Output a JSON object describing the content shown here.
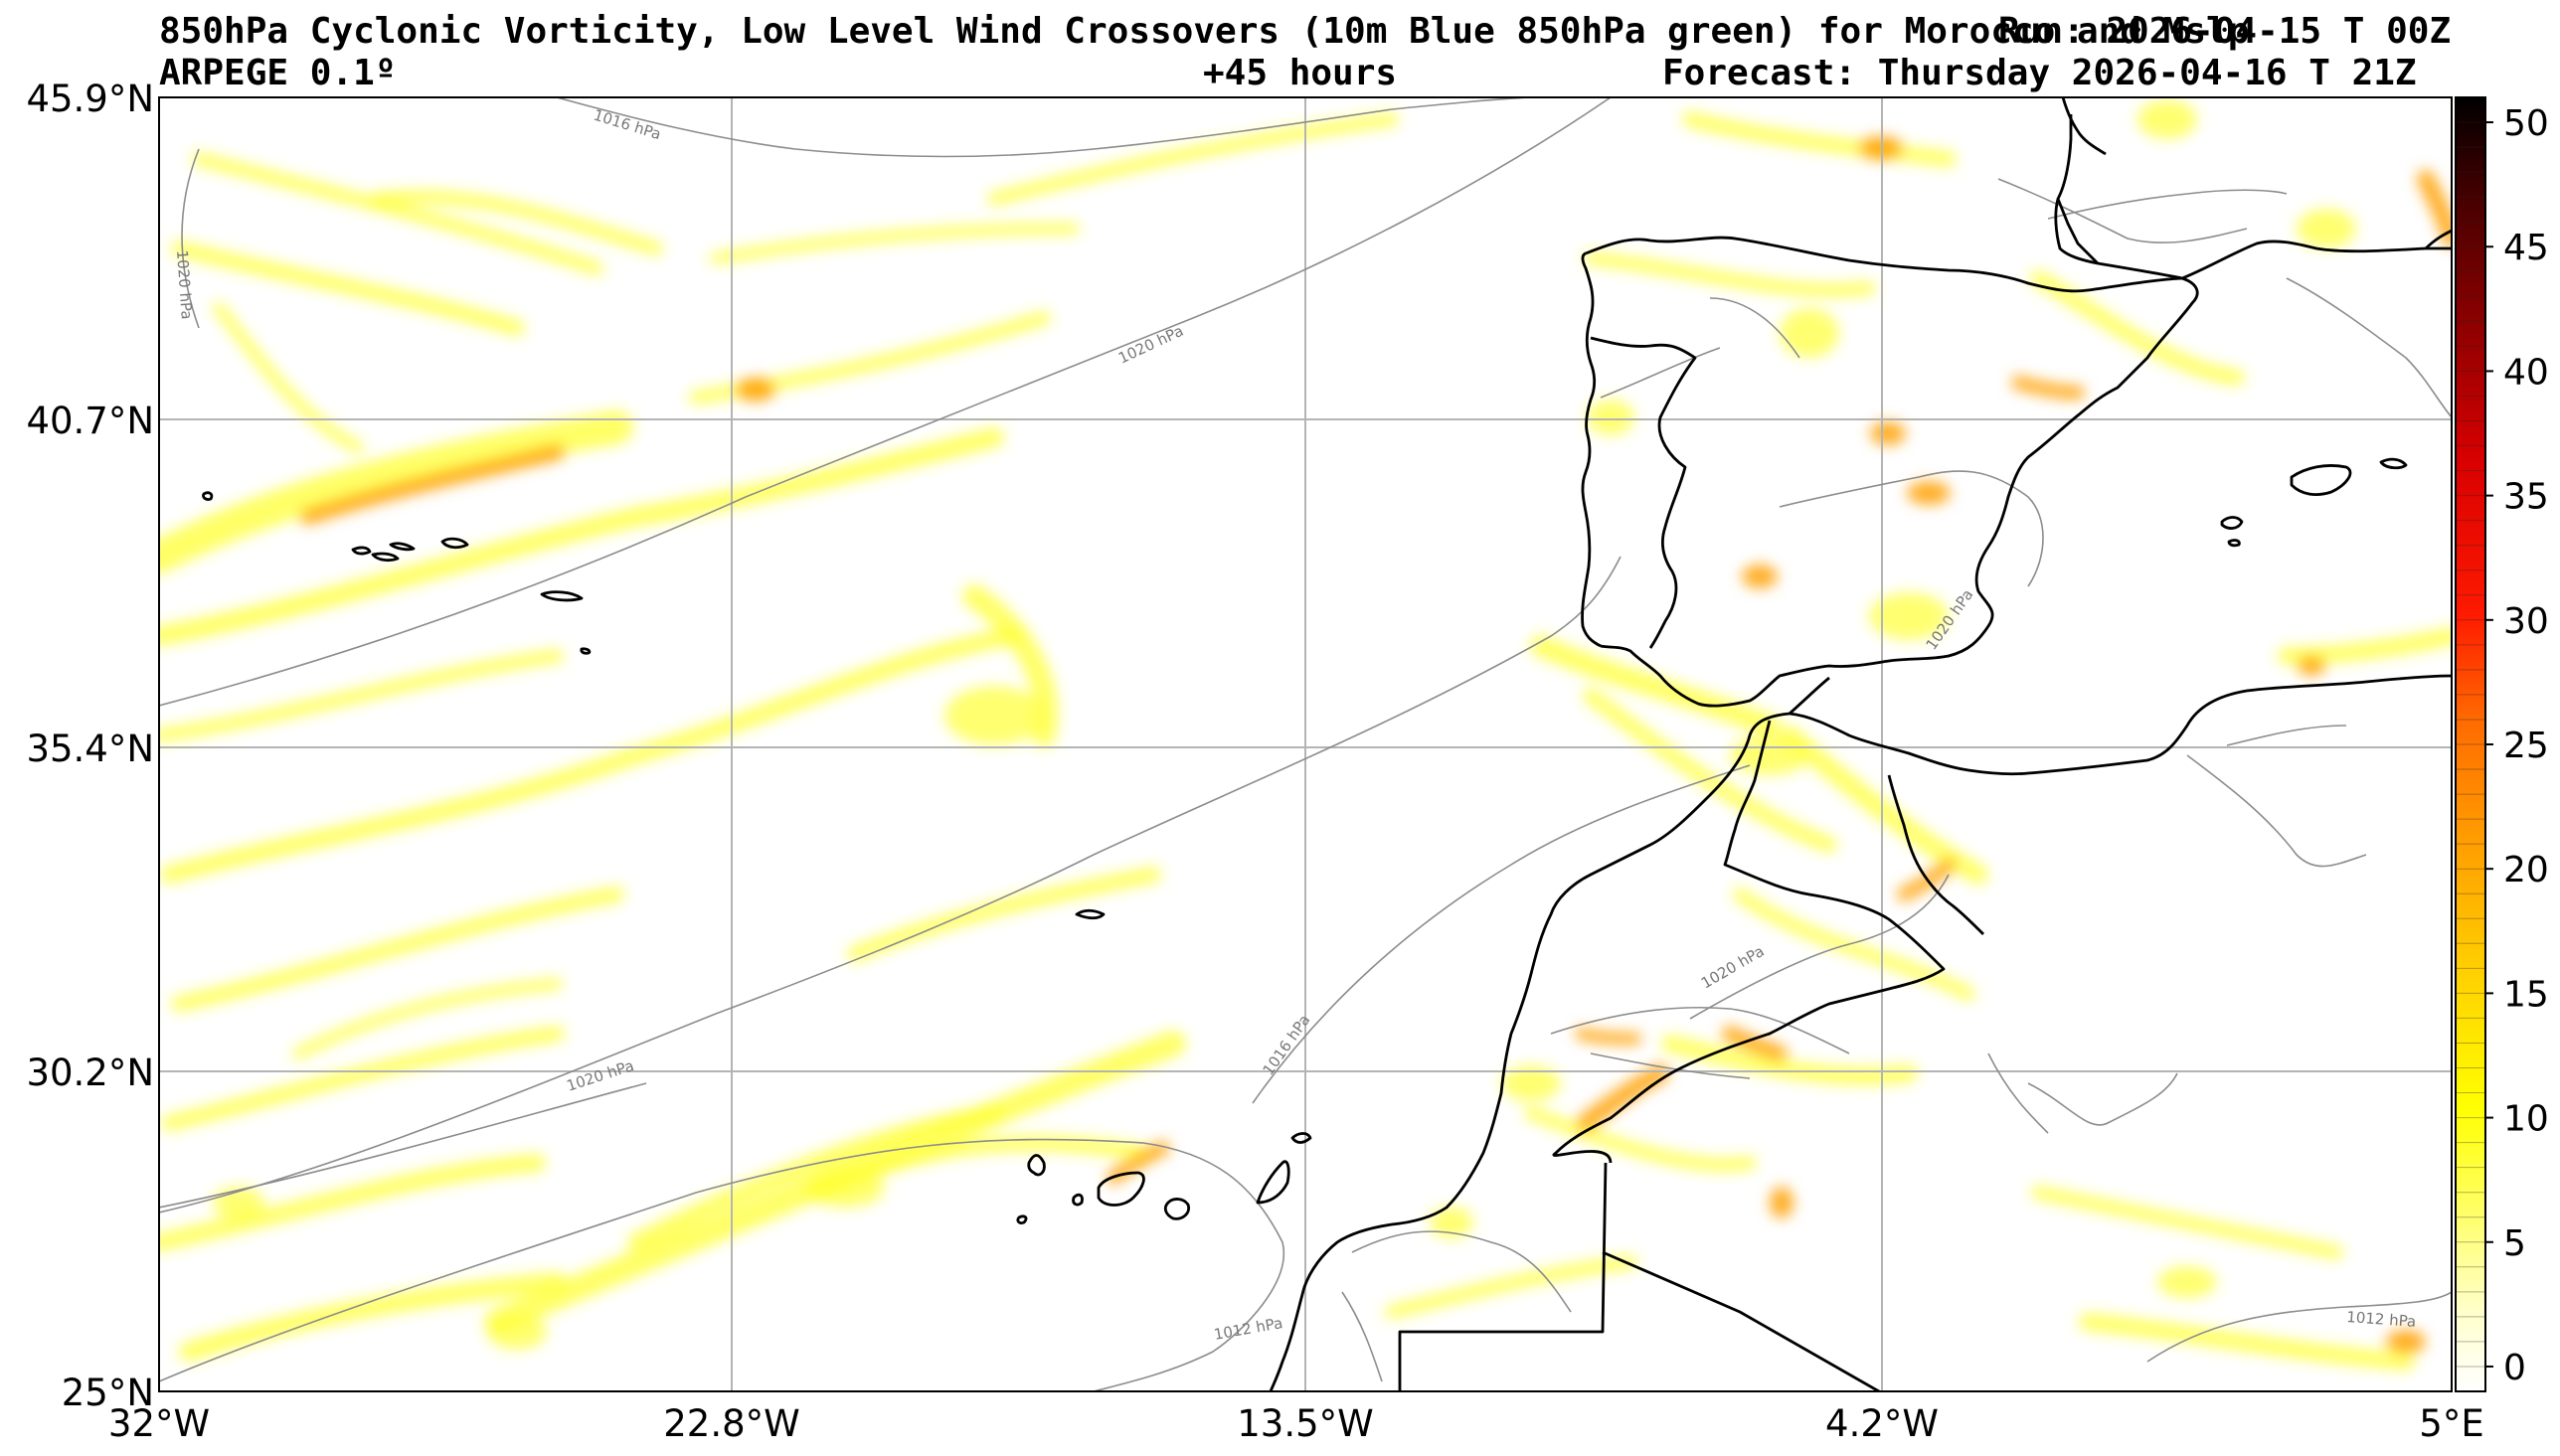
{
  "header": {
    "title": "850hPa Cyclonic Vorticity, Low Level Wind Crossovers (10m Blue 850hPa green) for Morocco and Mslp",
    "run": "Run: 2026-04-15 T 00Z",
    "model": "ARPEGE 0.1º",
    "lead_time": "+45 hours",
    "forecast": "Forecast: Thursday 2026-04-16 T 21Z"
  },
  "map": {
    "lat_labels": [
      "45.9°N",
      "40.7°N",
      "35.4°N",
      "30.2°N",
      "25°N"
    ],
    "lon_labels": [
      "32°W",
      "22.8°W",
      "13.5°W",
      "4.2°W",
      "5°E"
    ],
    "isobar_labels": [
      "1016 hPa",
      "1020 hPa",
      "1020 hPa",
      "1020 hPa",
      "1020 hPa",
      "1016 hPa",
      "1020 hPa",
      "1012 hPa",
      "1012 hPa"
    ],
    "colors": {
      "coast": "#000000",
      "isobar": "#8c8c8c",
      "grid": "#b4b4b4",
      "shade_low": "#ffff00",
      "shade_mid": "#ffb000",
      "shade_high": "#ff2000"
    }
  },
  "colorbar": {
    "ticks": [
      "0",
      "5",
      "10",
      "15",
      "20",
      "25",
      "30",
      "35",
      "40",
      "45",
      "50"
    ],
    "min": -1,
    "max": 51,
    "colors": [
      "#ffffff",
      "#ffff99",
      "#ffff00",
      "#ffd000",
      "#ffa500",
      "#ff6000",
      "#ff0000",
      "#cc0000",
      "#880000",
      "#400000",
      "#000000"
    ]
  }
}
